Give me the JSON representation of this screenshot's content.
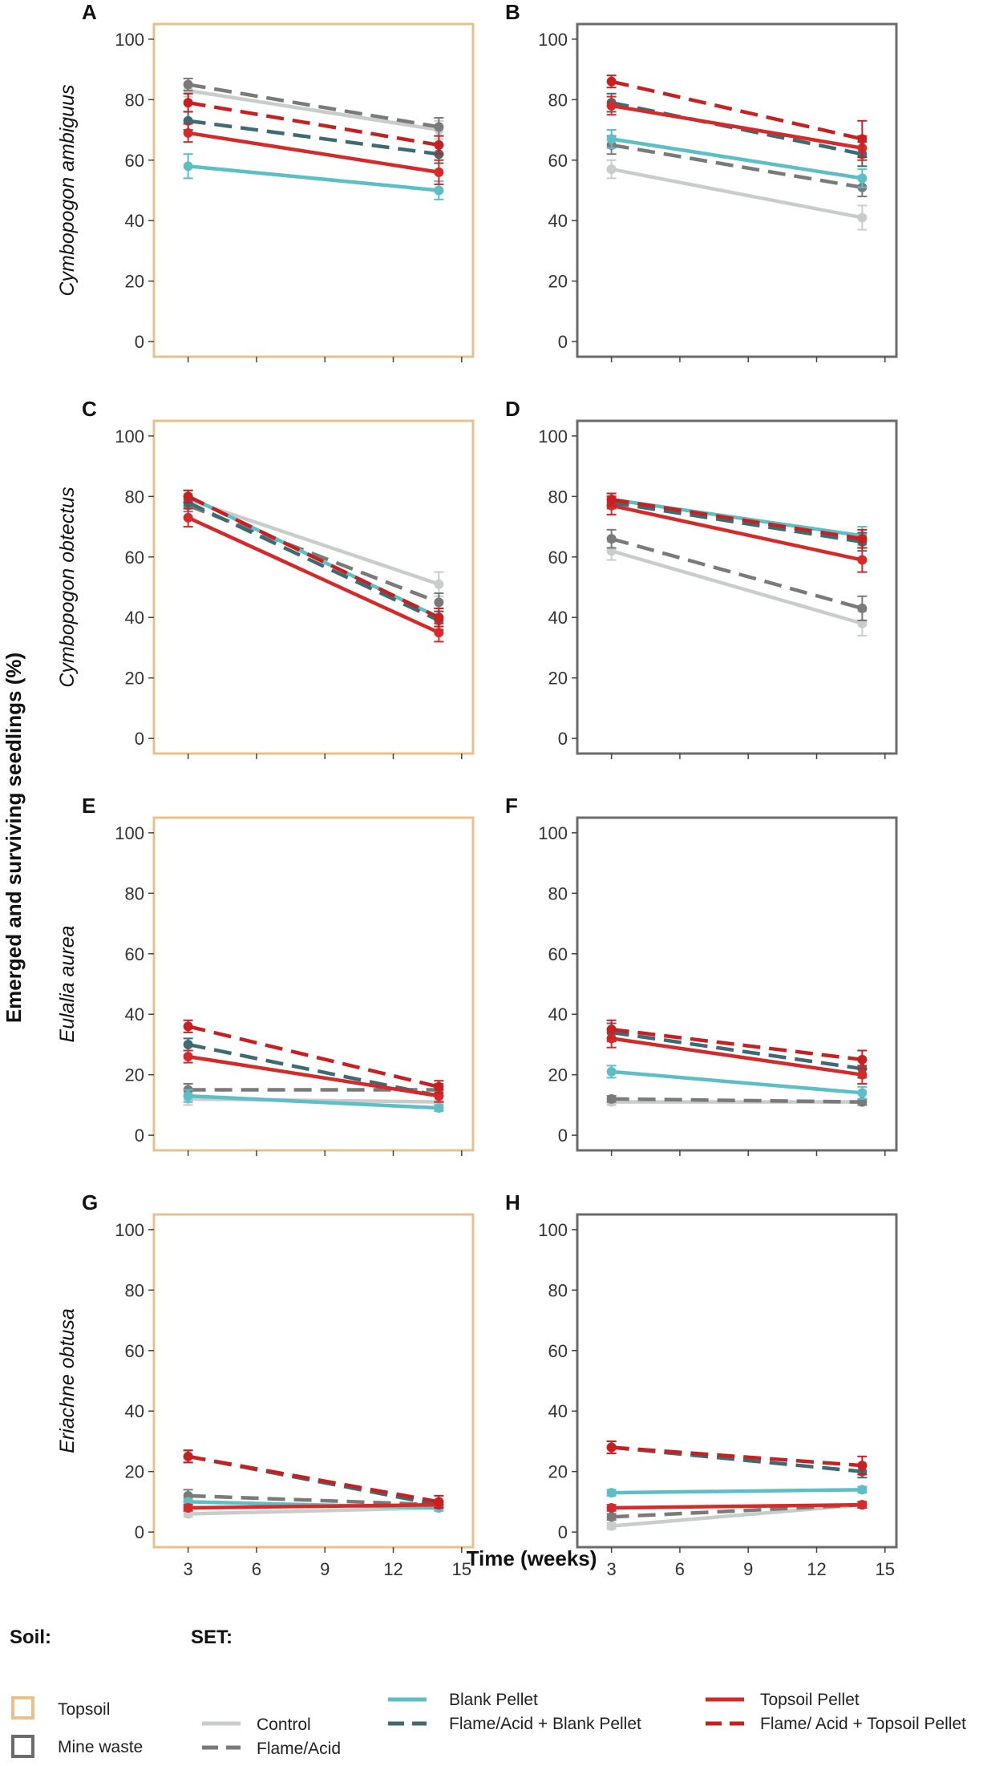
{
  "chart_data": {
    "type": "line",
    "ylabel": "Emerged and surviving seedlings (%)",
    "xlabel": "Time (weeks)",
    "x": [
      3,
      14
    ],
    "xlim": [
      1.5,
      15.5
    ],
    "ylim": [
      -5,
      105
    ],
    "xticks": [
      "3",
      "6",
      "9",
      "12",
      "15"
    ],
    "yticks": [
      "0",
      "20",
      "40",
      "60",
      "80",
      "100"
    ],
    "soil_title": "Soil:",
    "set_title": "SET:",
    "soils": [
      {
        "key": "topsoil",
        "name": "Topsoil",
        "color": "#e8c08a"
      },
      {
        "key": "mine",
        "name": "Mine waste",
        "color": "#6b6b6b"
      }
    ],
    "series_styles": [
      {
        "key": "control",
        "name": "Control",
        "color": "#c8cdcc",
        "dashed": false
      },
      {
        "key": "flame",
        "name": "Flame/Acid",
        "color": "#7a7a7a",
        "dashed": true
      },
      {
        "key": "blank",
        "name": "Blank Pellet",
        "color": "#5bbfc5",
        "dashed": false
      },
      {
        "key": "flameblank",
        "name": "Flame/Acid + Blank Pellet",
        "color": "#3d6b73",
        "dashed": true
      },
      {
        "key": "topsoil",
        "name": "Topsoil Pellet",
        "color": "#d62a2a",
        "dashed": false
      },
      {
        "key": "flametopsoil",
        "name": "Flame/ Acid + Topsoil Pellet",
        "color": "#c82020",
        "dashed": true
      }
    ],
    "rows": [
      {
        "species": "Cymbopogon ambiguus"
      },
      {
        "species": "Cymbopogon obtectus"
      },
      {
        "species": "Eulalia aurea"
      },
      {
        "species": "Eriachne obtusa"
      }
    ],
    "panels": [
      {
        "letter": "A",
        "row": 0,
        "col": 0,
        "soil": "topsoil",
        "series": {
          "control": [
            83,
            70
          ],
          "flame": [
            85,
            71
          ],
          "blank": [
            58,
            50
          ],
          "flameblank": [
            73,
            62
          ],
          "topsoil": [
            69,
            56
          ],
          "flametopsoil": [
            79,
            65
          ]
        },
        "errors": {
          "control": [
            2,
            3
          ],
          "flame": [
            2,
            3
          ],
          "blank": [
            4,
            3
          ],
          "flameblank": [
            3,
            3
          ],
          "topsoil": [
            3,
            4
          ],
          "flametopsoil": [
            3,
            3
          ]
        }
      },
      {
        "letter": "B",
        "row": 0,
        "col": 1,
        "soil": "mine",
        "series": {
          "control": [
            57,
            41
          ],
          "flame": [
            65,
            51
          ],
          "blank": [
            67,
            54
          ],
          "flameblank": [
            79,
            62
          ],
          "topsoil": [
            78,
            64
          ],
          "flametopsoil": [
            86,
            67
          ]
        },
        "errors": {
          "control": [
            3,
            4
          ],
          "flame": [
            3,
            3
          ],
          "blank": [
            3,
            3
          ],
          "flameblank": [
            3,
            4
          ],
          "topsoil": [
            3,
            4
          ],
          "flametopsoil": [
            2,
            6
          ]
        }
      },
      {
        "letter": "C",
        "row": 1,
        "col": 0,
        "soil": "topsoil",
        "series": {
          "control": [
            79,
            51
          ],
          "flame": [
            77,
            45
          ],
          "blank": [
            80,
            40
          ],
          "flameblank": [
            78,
            39
          ],
          "topsoil": [
            73,
            35
          ],
          "flametopsoil": [
            80,
            40
          ]
        },
        "errors": {
          "control": [
            2,
            4
          ],
          "flame": [
            2,
            3
          ],
          "blank": [
            2,
            3
          ],
          "flameblank": [
            2,
            3
          ],
          "topsoil": [
            3,
            3
          ],
          "flametopsoil": [
            2,
            3
          ]
        }
      },
      {
        "letter": "D",
        "row": 1,
        "col": 1,
        "soil": "mine",
        "series": {
          "control": [
            62,
            38
          ],
          "flame": [
            66,
            43
          ],
          "blank": [
            79,
            67
          ],
          "flameblank": [
            78,
            65
          ],
          "topsoil": [
            77,
            59
          ],
          "flametopsoil": [
            79,
            66
          ]
        },
        "errors": {
          "control": [
            3,
            4
          ],
          "flame": [
            3,
            4
          ],
          "blank": [
            2,
            3
          ],
          "flameblank": [
            2,
            3
          ],
          "topsoil": [
            3,
            4
          ],
          "flametopsoil": [
            2,
            3
          ]
        }
      },
      {
        "letter": "E",
        "row": 2,
        "col": 0,
        "soil": "topsoil",
        "series": {
          "control": [
            12,
            11
          ],
          "flame": [
            15,
            15
          ],
          "blank": [
            13,
            9
          ],
          "flameblank": [
            30,
            13
          ],
          "topsoil": [
            26,
            13
          ],
          "flametopsoil": [
            36,
            16
          ]
        },
        "errors": {
          "control": [
            2,
            2
          ],
          "flame": [
            2,
            2
          ],
          "blank": [
            2,
            1
          ],
          "flameblank": [
            2,
            2
          ],
          "topsoil": [
            2,
            2
          ],
          "flametopsoil": [
            2,
            2
          ]
        }
      },
      {
        "letter": "F",
        "row": 2,
        "col": 1,
        "soil": "mine",
        "series": {
          "control": [
            11,
            11
          ],
          "flame": [
            12,
            11
          ],
          "blank": [
            21,
            14
          ],
          "flameblank": [
            34,
            22
          ],
          "topsoil": [
            32,
            20
          ],
          "flametopsoil": [
            35,
            25
          ]
        },
        "errors": {
          "control": [
            1,
            1
          ],
          "flame": [
            1,
            1
          ],
          "blank": [
            2,
            2
          ],
          "flameblank": [
            3,
            3
          ],
          "topsoil": [
            3,
            3
          ],
          "flametopsoil": [
            3,
            3
          ]
        }
      },
      {
        "letter": "G",
        "row": 3,
        "col": 0,
        "soil": "topsoil",
        "series": {
          "control": [
            6,
            8
          ],
          "flame": [
            12,
            9
          ],
          "blank": [
            10,
            8
          ],
          "flameblank": [
            25,
            9
          ],
          "topsoil": [
            8,
            9
          ],
          "flametopsoil": [
            25,
            10
          ]
        },
        "errors": {
          "control": [
            1,
            1
          ],
          "flame": [
            2,
            1
          ],
          "blank": [
            1,
            1
          ],
          "flameblank": [
            2,
            1
          ],
          "topsoil": [
            1,
            1
          ],
          "flametopsoil": [
            2,
            2
          ]
        }
      },
      {
        "letter": "H",
        "row": 3,
        "col": 1,
        "soil": "mine",
        "series": {
          "control": [
            2,
            9
          ],
          "flame": [
            5,
            9
          ],
          "blank": [
            13,
            14
          ],
          "flameblank": [
            28,
            20
          ],
          "topsoil": [
            8,
            9
          ],
          "flametopsoil": [
            28,
            22
          ]
        },
        "errors": {
          "control": [
            1,
            1
          ],
          "flame": [
            1,
            1
          ],
          "blank": [
            1,
            1
          ],
          "flameblank": [
            2,
            2
          ],
          "topsoil": [
            1,
            1
          ],
          "flametopsoil": [
            2,
            3
          ]
        }
      }
    ]
  }
}
